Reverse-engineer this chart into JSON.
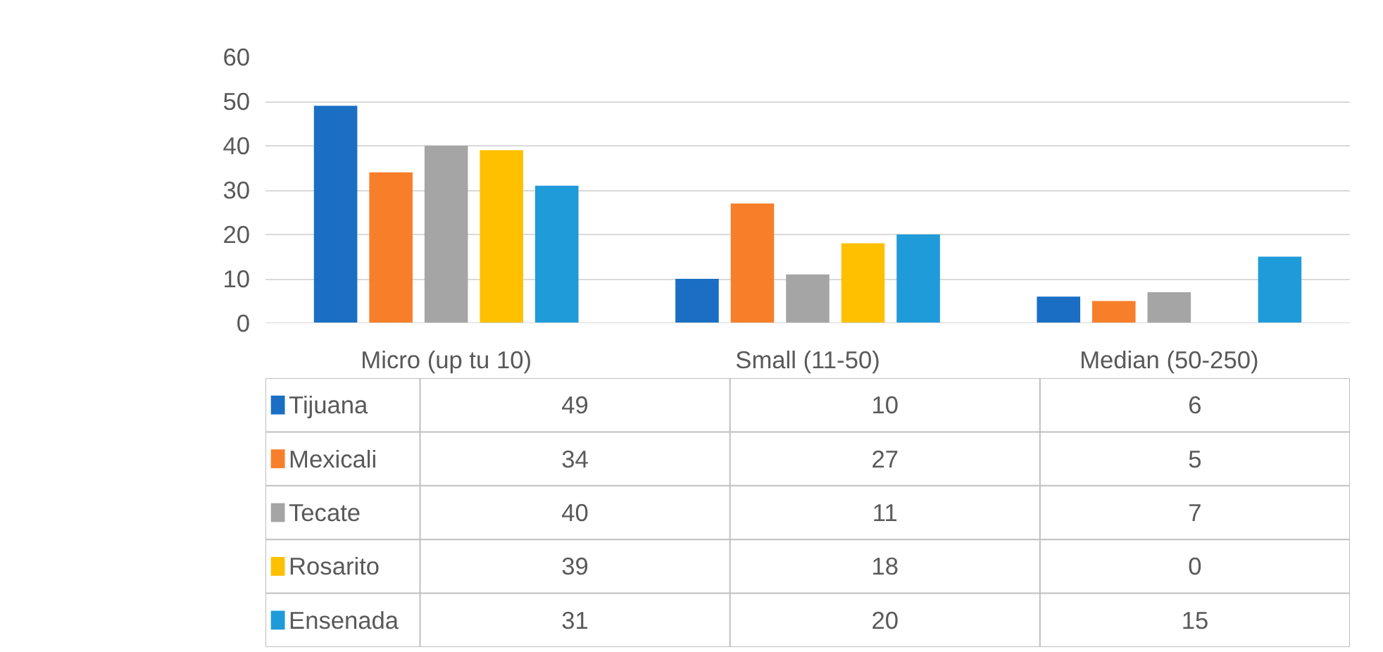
{
  "chart_data": {
    "type": "bar",
    "categories": [
      "Micro (up tu 10)",
      "Small (11-50)",
      "Median (50-250)"
    ],
    "series": [
      {
        "name": "Tijuana",
        "color": "#1a6fc4",
        "values": [
          49,
          10,
          6
        ]
      },
      {
        "name": "Mexicali",
        "color": "#f77f2a",
        "values": [
          34,
          27,
          5
        ]
      },
      {
        "name": "Tecate",
        "color": "#a5a5a5",
        "values": [
          40,
          11,
          7
        ]
      },
      {
        "name": "Rosarito",
        "color": "#ffc000",
        "values": [
          39,
          18,
          0
        ]
      },
      {
        "name": "Ensenada",
        "color": "#1f9bd9",
        "values": [
          31,
          20,
          15
        ]
      }
    ],
    "ylim": [
      0,
      60
    ],
    "yticks": [
      0,
      10,
      20,
      30,
      40,
      50,
      60
    ],
    "grid": "y",
    "legend": "bottom",
    "data_labels": true
  }
}
